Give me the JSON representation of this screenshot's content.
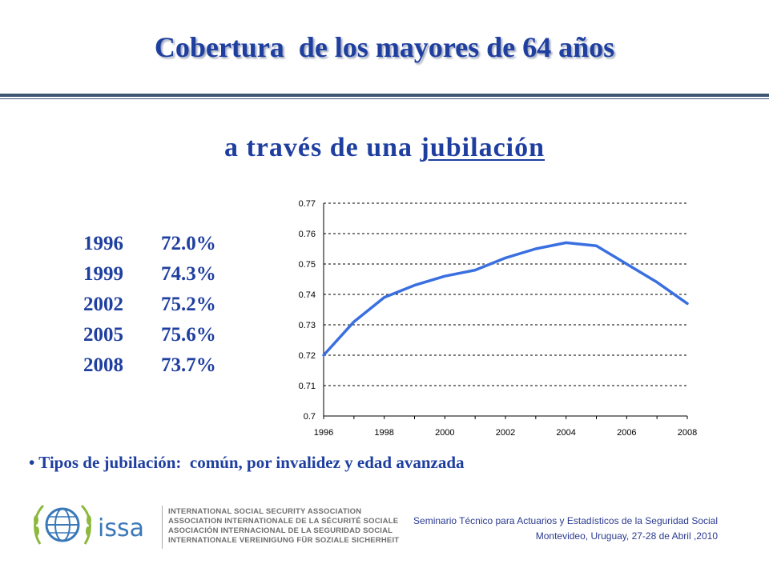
{
  "header": {
    "title": "Cobertura  de los mayores de 64 años",
    "subtitle_prefix": "a través de una ",
    "subtitle_underlined": "jubilación"
  },
  "coverage_table": [
    {
      "year": "1996",
      "value": "72.0%"
    },
    {
      "year": "1999",
      "value": "74.3%"
    },
    {
      "year": "2002",
      "value": "75.2%"
    },
    {
      "year": "2005",
      "value": "75.6%"
    },
    {
      "year": "2008",
      "value": "73.7%"
    }
  ],
  "chart_data": {
    "type": "line",
    "title": "",
    "xlabel": "",
    "ylabel": "",
    "x": [
      1996,
      1997,
      1998,
      1999,
      2000,
      2001,
      2002,
      2003,
      2004,
      2005,
      2006,
      2007,
      2008
    ],
    "series": [
      {
        "name": "",
        "values": [
          0.72,
          0.731,
          0.739,
          0.743,
          0.746,
          0.748,
          0.752,
          0.755,
          0.757,
          0.756,
          0.75,
          0.744,
          0.737
        ]
      }
    ],
    "xlim": [
      1996,
      2008
    ],
    "ylim": [
      0.7,
      0.77
    ],
    "x_ticks": [
      "1996",
      "1998",
      "2000",
      "2002",
      "2004",
      "2006",
      "2008"
    ],
    "y_ticks": [
      "0.7",
      "0.71",
      "0.72",
      "0.73",
      "0.74",
      "0.75",
      "0.76",
      "0.77"
    ],
    "grid": "horizontal dashed",
    "line_color": "#3a6fe0"
  },
  "bullet_text": "• Tipos de jubilación:  común, por invalidez y edad avanzada",
  "footer": {
    "logo_text": "issa",
    "org_names": [
      "INTERNATIONAL SOCIAL SECURITY ASSOCIATION",
      "ASSOCIATION INTERNATIONALE DE LA SÉCURITÉ SOCIALE",
      "ASOCIACIÓN INTERNACIONAL DE LA SEGURIDAD SOCIAL",
      "INTERNATIONALE VEREINIGUNG FÜR SOZIALE SICHERHEIT"
    ],
    "event_line1": "Seminario Técnico para Actuarios y Estadísticos de la Seguridad Social",
    "event_line2": "Montevideo, Uruguay, 27-28 de Abril ,2010"
  },
  "colors": {
    "title": "#1f3fa0",
    "rule": "#3e5675",
    "issa_green": "#8db83d",
    "issa_blue": "#3a78b8"
  }
}
